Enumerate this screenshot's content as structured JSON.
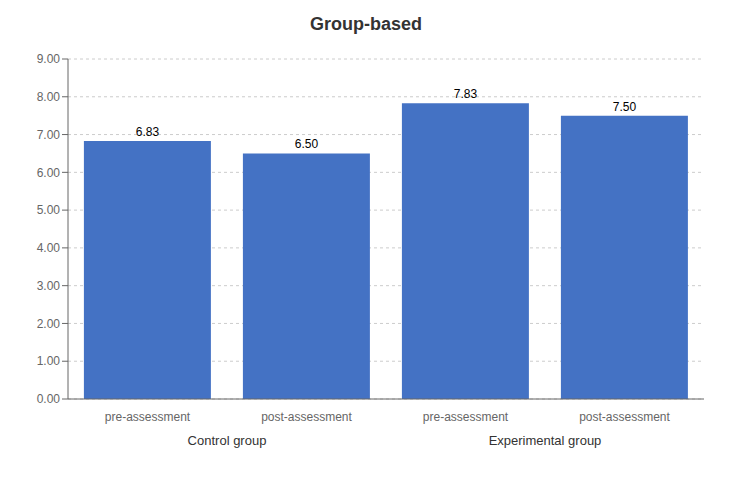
{
  "chart_data": {
    "type": "bar",
    "title": "Group-based",
    "categories": [
      "pre-assessment",
      "post-assessment",
      "pre-assessment",
      "post-assessment"
    ],
    "groups": [
      "Control group",
      "Control group",
      "Experimental group",
      "Experimental group"
    ],
    "values": [
      6.83,
      6.5,
      7.83,
      7.5
    ],
    "value_labels": [
      "6.83",
      "6.50",
      "7.83",
      "7.50"
    ],
    "data_labels": true,
    "color": "#4472C4",
    "ylim": [
      0,
      9.0
    ],
    "yticks": [
      {
        "value": 0,
        "label": "0.00"
      },
      {
        "value": 1,
        "label": "1.00"
      },
      {
        "value": 2,
        "label": "2.00"
      },
      {
        "value": 3,
        "label": "3.00"
      },
      {
        "value": 4,
        "label": "4.00"
      },
      {
        "value": 5,
        "label": "5.00"
      },
      {
        "value": 6,
        "label": "6.00"
      },
      {
        "value": 7,
        "label": "7.00"
      },
      {
        "value": 8,
        "label": "8.00"
      },
      {
        "value": 9,
        "label": "9.00"
      }
    ],
    "grid": true
  }
}
